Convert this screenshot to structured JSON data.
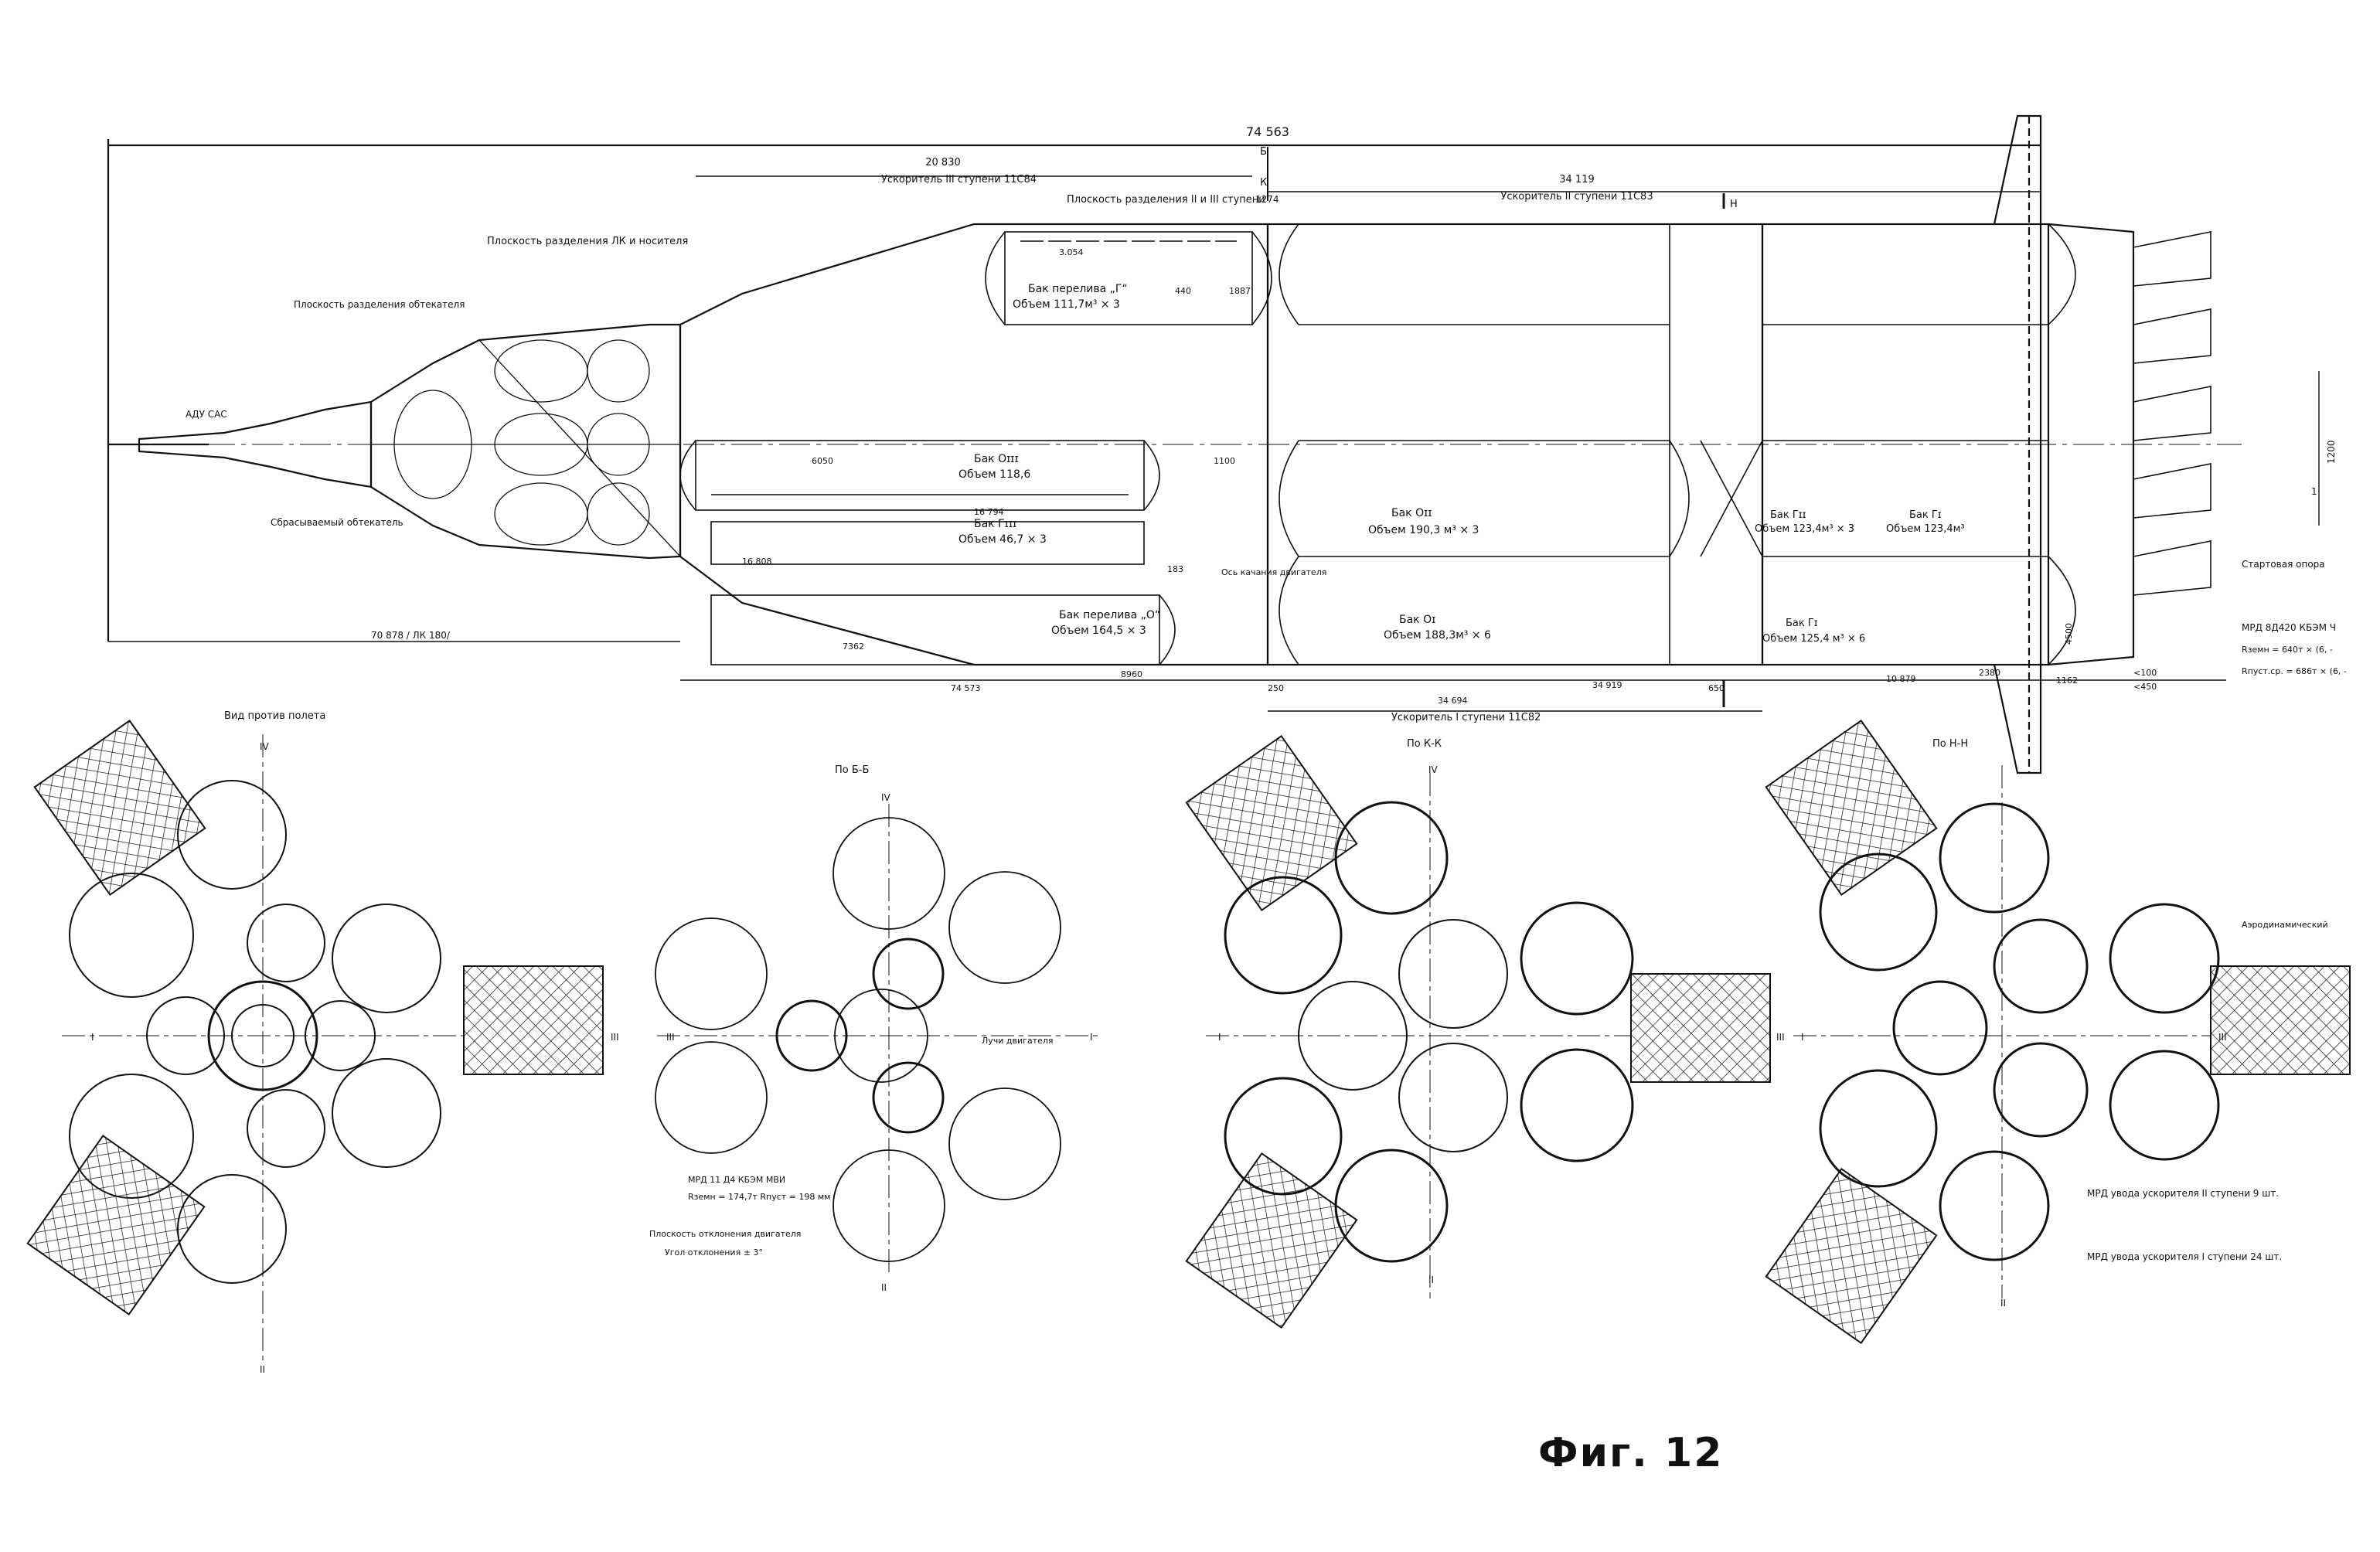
{
  "figure_title": "Фиг. 12",
  "colors": {
    "ink": "#111111",
    "paper": "#ffffff"
  },
  "side_view": {
    "overall_length": "74 563",
    "dim_upper_third_stage": "20 830",
    "third_stage_label": "Ускоритель III ступени 11С84",
    "dim_second_stage": "34 119",
    "second_stage_label": "Ускоритель II ступени 11С83",
    "plane_sep_2_3": "Плоскость разделения II и III ступени",
    "sep_dim": "1274",
    "plane_sep_lk": "Плоскость разделения ЛК и носителя",
    "plane_sep_fairing": "Плоскость разделения обтекателя",
    "sas_label": "АДУ САС",
    "jettison_fairing": "Сбрасываемый обтекатель",
    "dim_left_bottom": "70 878 / ЛК 180/",
    "dim_3050": "3.054",
    "tank_g_top": "Бак перелива „Г“",
    "tank_g_top_vol": "Объем 111,7м³ × 3",
    "dim_440": "440",
    "dim_1887": "1887",
    "tank_o_iii": "Бак Оɪɪɪ",
    "tank_o_iii_vol": "Объем 118,6",
    "dim_6050": "6050",
    "dim_16794": "16 794",
    "tank_g_iii": "Бак Гɪɪɪ",
    "tank_g_iii_vol": "Объем 46,7 × 3",
    "dim_16808": "16 808",
    "tank_o_transfer": "Бак перелива „О“",
    "tank_o_transfer_vol": "Объем 164,5 × 3",
    "dim_7362": "7362",
    "dim_8960": "8960",
    "dim_74573": "74 573",
    "dim_183": "183",
    "dim_1100": "1100",
    "axis_swing": "Ось качания двигателя",
    "tank_o_ii": "Бак Оɪɪ",
    "tank_o_ii_vol": "Объем 190,3 м³ × 3",
    "tank_o_i": "Бак Оɪ",
    "tank_o_i_vol": "Объем 188,3м³ × 6",
    "tank_g_ii": "Бак Гɪɪ",
    "tank_g_ii_vol": "Объем 123,4м³ × 3",
    "tank_g_i_b": "Бак Гɪ",
    "tank_g_i_b_vol": "Объем 123,4м³",
    "tank_g_i": "Бак Гɪ",
    "tank_g_i_vol": "Объем 125,4 м³ × 6",
    "dim_250": "250",
    "dim_34694": "34 694",
    "dim_650": "650",
    "dim_10879": "10 879",
    "dim_34919": "34 919",
    "first_stage_label": "Ускоритель I ступени 11С82",
    "start_support": "Стартовая опора",
    "engine_label": "МРД 8Д420 КБЭМ Ч",
    "thrust_1": "Rземн = 640т × (6, -",
    "thrust_2": "Rпуст.ср. = 686т × (6, -",
    "dim_100": "<100",
    "dim_450": "<450",
    "dim_2380": "2380",
    "dim_1162": "1162",
    "dim_4500": "4500",
    "section_mark_b": "Б",
    "section_mark_k": "К",
    "section_mark_n": "Н",
    "vert_dim": "1200",
    "mark_i": "1"
  },
  "views": [
    {
      "title": "Вид против полета",
      "roman_top": "IV",
      "roman_left": "I",
      "roman_right": "III",
      "roman_bottom": "II"
    },
    {
      "title": "По Б-Б",
      "roman_top": "IV",
      "roman_left": "III",
      "roman_right": "I",
      "roman_bottom": "II",
      "note_engine": "Лучи двигателя",
      "engine_spec_1": "МРД 11 Д4 КБЭМ МВИ",
      "engine_spec_2": "Rземн = 174,7т   Rпуст = 198 мм",
      "note_plane": "Плоскость отклонения двигателя",
      "note_angle": "Угол отклонения ± 3°"
    },
    {
      "title": "По К-К",
      "roman_top": "IV",
      "roman_left": "I",
      "roman_right": "III",
      "roman_bottom": "II"
    },
    {
      "title": "По Н-Н",
      "roman_left": "I",
      "roman_right": "III",
      "roman_bottom": "II",
      "note_aero": "Аэродинамический",
      "note_ii": "МРД увода ускорителя II ступени   9 шт.",
      "note_i": "МРД увода ускорителя I ступени   24 шт."
    }
  ]
}
